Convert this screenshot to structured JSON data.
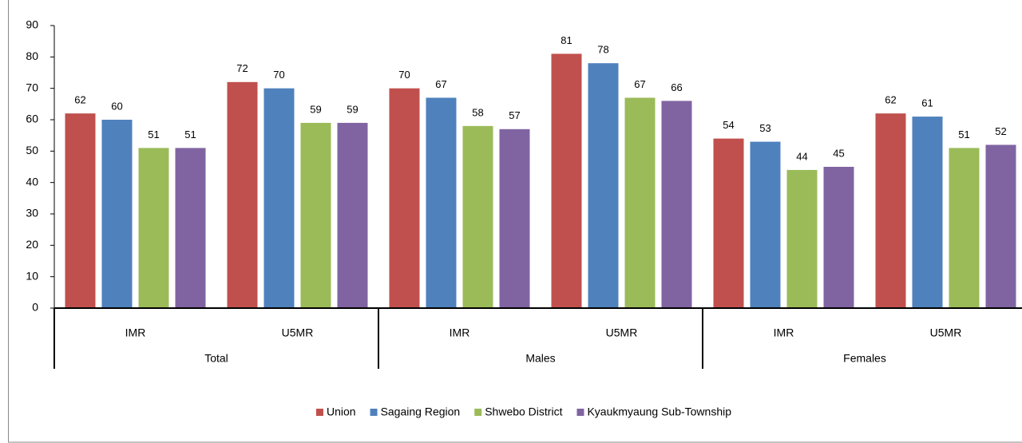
{
  "chart_data": {
    "type": "bar",
    "categories": [
      "IMR",
      "U5MR",
      "IMR",
      "U5MR",
      "IMR",
      "U5MR"
    ],
    "groups": [
      "Total",
      "Males",
      "Females"
    ],
    "series": [
      {
        "name": "Union",
        "color": "#c0504d",
        "values": [
          62,
          72,
          70,
          81,
          54,
          62
        ]
      },
      {
        "name": "Sagaing Region",
        "color": "#4f81bd",
        "values": [
          60,
          70,
          67,
          78,
          53,
          61
        ]
      },
      {
        "name": "Shwebo District",
        "color": "#9bbb59",
        "values": [
          51,
          59,
          58,
          67,
          44,
          51
        ]
      },
      {
        "name": "Kyaukmyaung Sub-Township",
        "color": "#8064a2",
        "values": [
          51,
          59,
          57,
          66,
          45,
          52
        ]
      }
    ],
    "ylim": [
      0,
      90
    ],
    "yticks": [
      0,
      10,
      20,
      30,
      40,
      50,
      60,
      70,
      80,
      90
    ],
    "grid": false,
    "data_labels": true,
    "legend": "bottom"
  }
}
